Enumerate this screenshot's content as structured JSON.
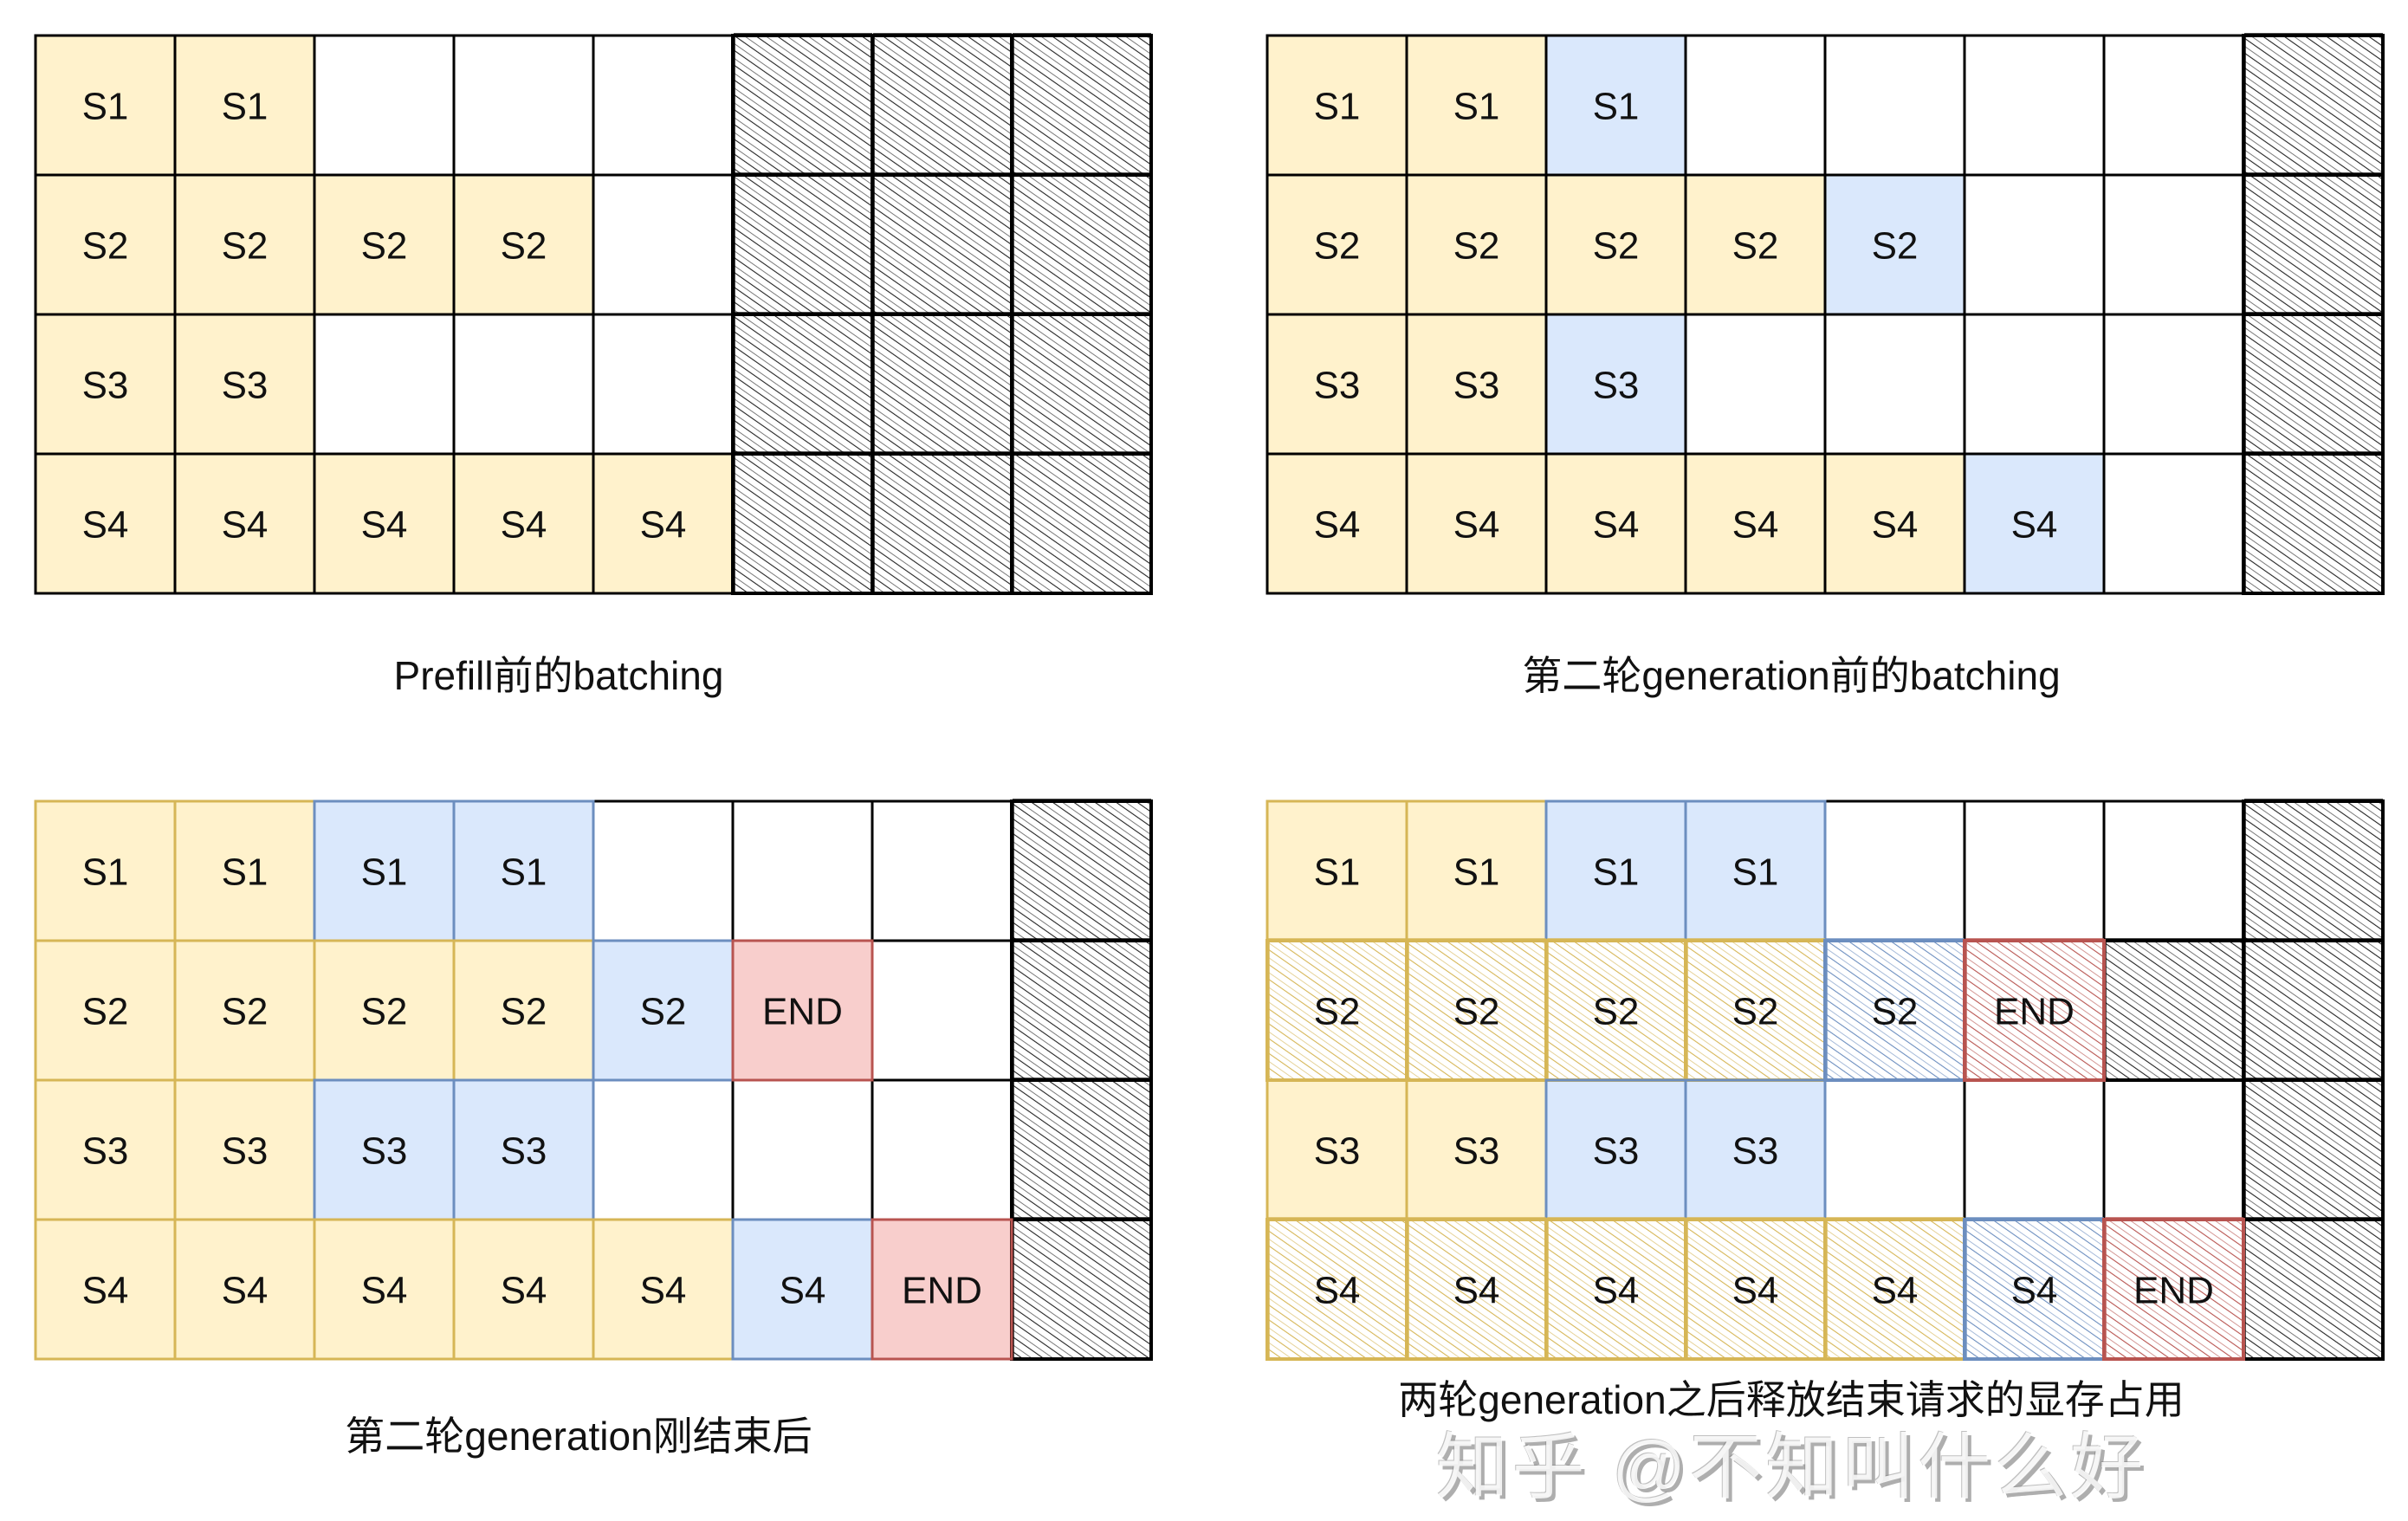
{
  "colors": {
    "yellow": {
      "fill": "#fff2cc",
      "stroke": "#d6b656"
    },
    "blue": {
      "fill": "#dae8fc",
      "stroke": "#6c8ebf"
    },
    "red": {
      "fill": "#f8cecc",
      "stroke": "#b85450"
    },
    "empty": {
      "fill": "#ffffff",
      "stroke": "#000000"
    },
    "hatch": {
      "stroke": "#222222"
    }
  },
  "grids": [
    {
      "caption": "Prefill前的batching",
      "colored_borders": false,
      "rows": [
        [
          {
            "label": "S1",
            "fill": "yellow"
          },
          {
            "label": "S1",
            "fill": "yellow"
          },
          {
            "fill": "empty"
          },
          {
            "fill": "empty"
          },
          {
            "fill": "empty"
          },
          {
            "fill": "hatch"
          },
          {
            "fill": "hatch"
          },
          {
            "fill": "hatch"
          }
        ],
        [
          {
            "label": "S2",
            "fill": "yellow"
          },
          {
            "label": "S2",
            "fill": "yellow"
          },
          {
            "label": "S2",
            "fill": "yellow"
          },
          {
            "label": "S2",
            "fill": "yellow"
          },
          {
            "fill": "empty"
          },
          {
            "fill": "hatch"
          },
          {
            "fill": "hatch"
          },
          {
            "fill": "hatch"
          }
        ],
        [
          {
            "label": "S3",
            "fill": "yellow"
          },
          {
            "label": "S3",
            "fill": "yellow"
          },
          {
            "fill": "empty"
          },
          {
            "fill": "empty"
          },
          {
            "fill": "empty"
          },
          {
            "fill": "hatch"
          },
          {
            "fill": "hatch"
          },
          {
            "fill": "hatch"
          }
        ],
        [
          {
            "label": "S4",
            "fill": "yellow"
          },
          {
            "label": "S4",
            "fill": "yellow"
          },
          {
            "label": "S4",
            "fill": "yellow"
          },
          {
            "label": "S4",
            "fill": "yellow"
          },
          {
            "label": "S4",
            "fill": "yellow"
          },
          {
            "fill": "hatch"
          },
          {
            "fill": "hatch"
          },
          {
            "fill": "hatch"
          }
        ]
      ]
    },
    {
      "caption": "第二轮generation前的batching",
      "colored_borders": false,
      "rows": [
        [
          {
            "label": "S1",
            "fill": "yellow"
          },
          {
            "label": "S1",
            "fill": "yellow"
          },
          {
            "label": "S1",
            "fill": "blue"
          },
          {
            "fill": "empty"
          },
          {
            "fill": "empty"
          },
          {
            "fill": "empty"
          },
          {
            "fill": "empty"
          },
          {
            "fill": "hatch"
          }
        ],
        [
          {
            "label": "S2",
            "fill": "yellow"
          },
          {
            "label": "S2",
            "fill": "yellow"
          },
          {
            "label": "S2",
            "fill": "yellow"
          },
          {
            "label": "S2",
            "fill": "yellow"
          },
          {
            "label": "S2",
            "fill": "blue"
          },
          {
            "fill": "empty"
          },
          {
            "fill": "empty"
          },
          {
            "fill": "hatch"
          }
        ],
        [
          {
            "label": "S3",
            "fill": "yellow"
          },
          {
            "label": "S3",
            "fill": "yellow"
          },
          {
            "label": "S3",
            "fill": "blue"
          },
          {
            "fill": "empty"
          },
          {
            "fill": "empty"
          },
          {
            "fill": "empty"
          },
          {
            "fill": "empty"
          },
          {
            "fill": "hatch"
          }
        ],
        [
          {
            "label": "S4",
            "fill": "yellow"
          },
          {
            "label": "S4",
            "fill": "yellow"
          },
          {
            "label": "S4",
            "fill": "yellow"
          },
          {
            "label": "S4",
            "fill": "yellow"
          },
          {
            "label": "S4",
            "fill": "yellow"
          },
          {
            "label": "S4",
            "fill": "blue"
          },
          {
            "fill": "empty"
          },
          {
            "fill": "hatch"
          }
        ]
      ]
    },
    {
      "caption": "第二轮generation刚结束后",
      "colored_borders": true,
      "rows": [
        [
          {
            "label": "S1",
            "fill": "yellow"
          },
          {
            "label": "S1",
            "fill": "yellow"
          },
          {
            "label": "S1",
            "fill": "blue"
          },
          {
            "label": "S1",
            "fill": "blue"
          },
          {
            "fill": "empty"
          },
          {
            "fill": "empty"
          },
          {
            "fill": "empty"
          },
          {
            "fill": "hatch"
          }
        ],
        [
          {
            "label": "S2",
            "fill": "yellow"
          },
          {
            "label": "S2",
            "fill": "yellow"
          },
          {
            "label": "S2",
            "fill": "yellow"
          },
          {
            "label": "S2",
            "fill": "yellow"
          },
          {
            "label": "S2",
            "fill": "blue"
          },
          {
            "label": "END",
            "fill": "red"
          },
          {
            "fill": "empty"
          },
          {
            "fill": "hatch"
          }
        ],
        [
          {
            "label": "S3",
            "fill": "yellow"
          },
          {
            "label": "S3",
            "fill": "yellow"
          },
          {
            "label": "S3",
            "fill": "blue"
          },
          {
            "label": "S3",
            "fill": "blue"
          },
          {
            "fill": "empty"
          },
          {
            "fill": "empty"
          },
          {
            "fill": "empty"
          },
          {
            "fill": "hatch"
          }
        ],
        [
          {
            "label": "S4",
            "fill": "yellow"
          },
          {
            "label": "S4",
            "fill": "yellow"
          },
          {
            "label": "S4",
            "fill": "yellow"
          },
          {
            "label": "S4",
            "fill": "yellow"
          },
          {
            "label": "S4",
            "fill": "yellow"
          },
          {
            "label": "S4",
            "fill": "blue"
          },
          {
            "label": "END",
            "fill": "red"
          },
          {
            "fill": "hatch"
          }
        ]
      ]
    },
    {
      "caption": "两轮generation之后释放结束请求的显存占用",
      "colored_borders": true,
      "rows": [
        [
          {
            "label": "S1",
            "fill": "yellow"
          },
          {
            "label": "S1",
            "fill": "yellow"
          },
          {
            "label": "S1",
            "fill": "blue"
          },
          {
            "label": "S1",
            "fill": "blue"
          },
          {
            "fill": "empty"
          },
          {
            "fill": "empty"
          },
          {
            "fill": "empty"
          },
          {
            "fill": "hatch"
          }
        ],
        [
          {
            "label": "S2",
            "fill": "yellow",
            "hatched": true
          },
          {
            "label": "S2",
            "fill": "yellow",
            "hatched": true
          },
          {
            "label": "S2",
            "fill": "yellow",
            "hatched": true
          },
          {
            "label": "S2",
            "fill": "yellow",
            "hatched": true
          },
          {
            "label": "S2",
            "fill": "blue",
            "hatched": true
          },
          {
            "label": "END",
            "fill": "red",
            "hatched": true
          },
          {
            "fill": "hatch"
          },
          {
            "fill": "hatch"
          }
        ],
        [
          {
            "label": "S3",
            "fill": "yellow"
          },
          {
            "label": "S3",
            "fill": "yellow"
          },
          {
            "label": "S3",
            "fill": "blue"
          },
          {
            "label": "S3",
            "fill": "blue"
          },
          {
            "fill": "empty"
          },
          {
            "fill": "empty"
          },
          {
            "fill": "empty"
          },
          {
            "fill": "hatch"
          }
        ],
        [
          {
            "label": "S4",
            "fill": "yellow",
            "hatched": true
          },
          {
            "label": "S4",
            "fill": "yellow",
            "hatched": true
          },
          {
            "label": "S4",
            "fill": "yellow",
            "hatched": true
          },
          {
            "label": "S4",
            "fill": "yellow",
            "hatched": true
          },
          {
            "label": "S4",
            "fill": "yellow",
            "hatched": true
          },
          {
            "label": "S4",
            "fill": "blue",
            "hatched": true
          },
          {
            "label": "END",
            "fill": "red",
            "hatched": true
          },
          {
            "fill": "hatch"
          }
        ]
      ]
    }
  ],
  "watermark": "知乎 @不知叫什么好"
}
